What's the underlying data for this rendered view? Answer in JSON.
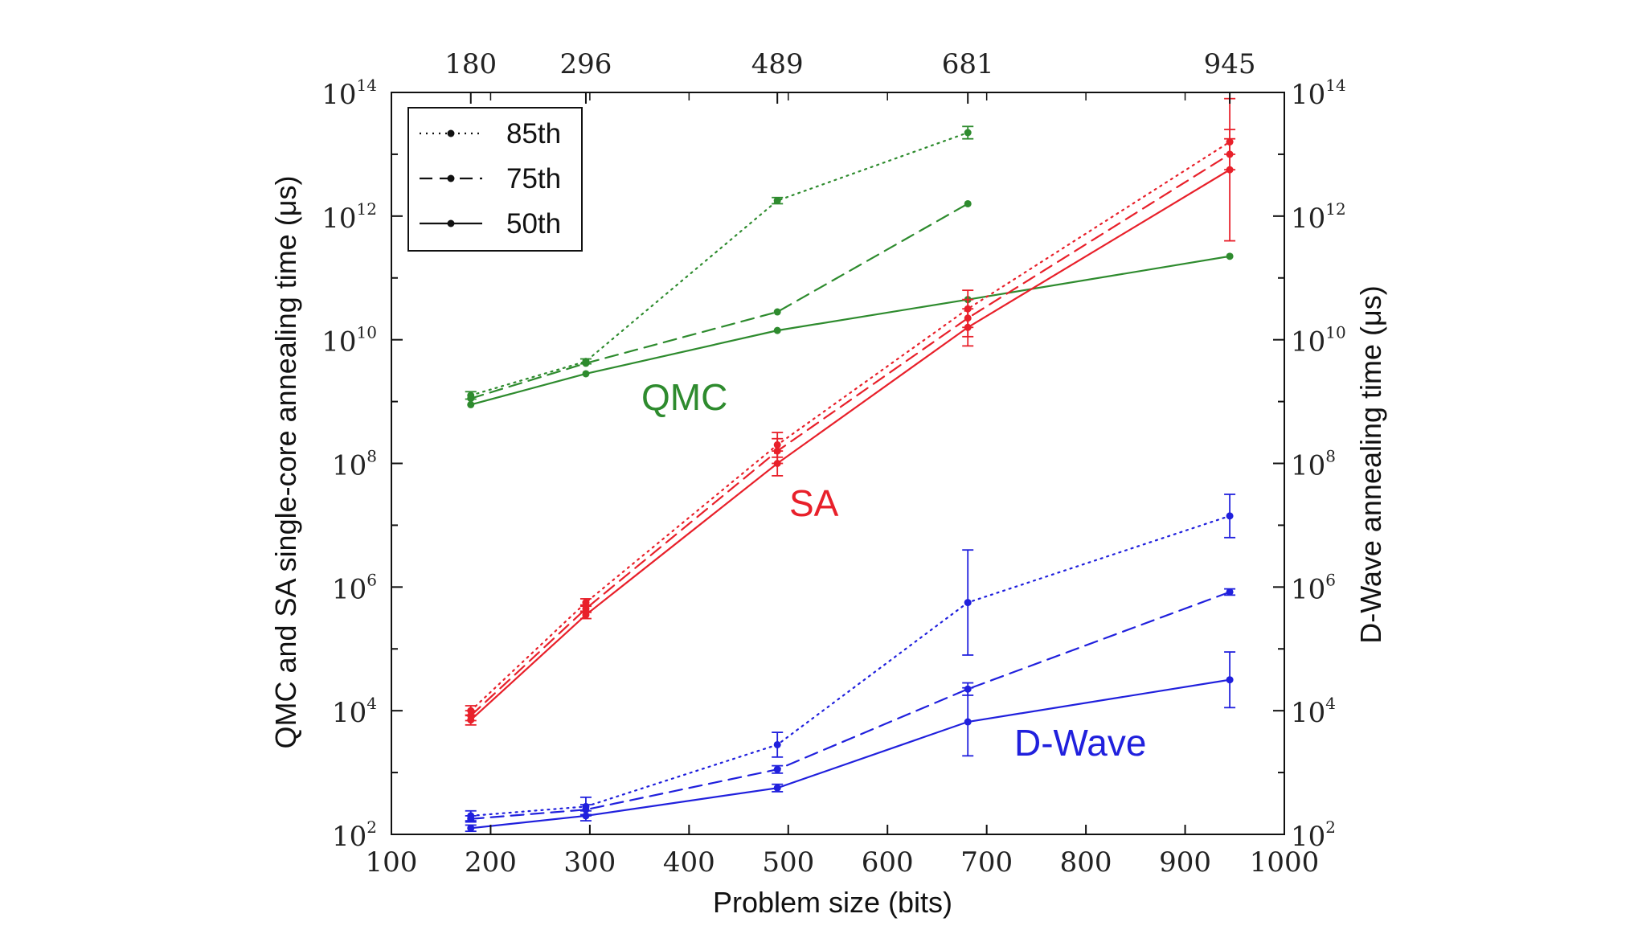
{
  "chart_data": {
    "type": "line",
    "xlabel": "Problem size (bits)",
    "ylabel_left": "QMC and SA single-core annealing time (μs)",
    "ylabel_right": "D-Wave annealing time (μs)",
    "xlim": [
      100,
      1000
    ],
    "ylim_exp": [
      2,
      14
    ],
    "y_scale": "log",
    "x_ticks": [
      100,
      200,
      300,
      400,
      500,
      600,
      700,
      800,
      900,
      1000
    ],
    "x_tick_labels": [
      "100",
      "200",
      "300",
      "400",
      "500",
      "600",
      "700",
      "800",
      "900",
      "1000"
    ],
    "top_ticks": [
      180,
      296,
      489,
      681,
      945
    ],
    "top_tick_labels": [
      "180",
      "296",
      "489",
      "681",
      "945"
    ],
    "y_tick_exponents": [
      2,
      4,
      6,
      8,
      10,
      12,
      14
    ],
    "y_tick_base": "10",
    "legend": {
      "position": "top-left",
      "entries": [
        {
          "label": "85th",
          "style": "dotted"
        },
        {
          "label": "75th",
          "style": "dashed"
        },
        {
          "label": "50th",
          "style": "solid"
        }
      ]
    },
    "annotations": [
      {
        "text": "QMC",
        "group": "QMC"
      },
      {
        "text": "SA",
        "group": "SA"
      },
      {
        "text": "D-Wave",
        "group": "D-Wave"
      }
    ],
    "colors": {
      "QMC": "#2e8b2e",
      "SA": "#e8202a",
      "D-Wave": "#2020dd"
    },
    "series": [
      {
        "group": "QMC",
        "percentile": "85th",
        "style": "dotted",
        "x": [
          180,
          296,
          489,
          681
        ],
        "log10_y": [
          9.1,
          9.65,
          12.25,
          13.35
        ],
        "err": [
          0.06,
          0.04,
          0.05,
          0.1
        ]
      },
      {
        "group": "QMC",
        "percentile": "75th",
        "style": "dashed",
        "x": [
          180,
          296,
          489,
          681
        ],
        "log10_y": [
          9.05,
          9.62,
          10.45,
          12.2
        ],
        "err": [
          0,
          0,
          0,
          0
        ]
      },
      {
        "group": "QMC",
        "percentile": "50th",
        "style": "solid",
        "x": [
          180,
          296,
          489,
          681,
          945
        ],
        "log10_y": [
          8.95,
          9.45,
          10.15,
          10.65,
          11.35
        ],
        "err": [
          0,
          0,
          0,
          0,
          0
        ]
      },
      {
        "group": "SA",
        "percentile": "85th",
        "style": "dotted",
        "x": [
          180,
          296,
          489,
          681,
          945
        ],
        "log10_y": [
          4.0,
          5.75,
          8.3,
          10.5,
          13.2
        ],
        "err": [
          0.08,
          0.06,
          0.2,
          0.3,
          0.2
        ]
      },
      {
        "group": "SA",
        "percentile": "75th",
        "style": "dashed",
        "x": [
          180,
          296,
          489,
          681,
          945
        ],
        "log10_y": [
          3.92,
          5.65,
          8.2,
          10.35,
          13.0
        ],
        "err": [
          0.08,
          0.06,
          0.2,
          0.3,
          0.25
        ]
      },
      {
        "group": "SA",
        "percentile": "50th",
        "style": "solid",
        "x": [
          180,
          296,
          489,
          681,
          945
        ],
        "log10_y": [
          3.85,
          5.55,
          8.0,
          10.2,
          12.75
        ],
        "err": [
          0.08,
          0.06,
          0.2,
          0.3,
          1.15
        ]
      },
      {
        "group": "D-Wave",
        "percentile": "85th",
        "style": "dotted",
        "x": [
          180,
          296,
          489,
          681,
          945
        ],
        "log10_y": [
          2.3,
          2.45,
          3.45,
          5.75,
          7.15
        ],
        "err": [
          0.08,
          0.15,
          0.2,
          0.85,
          0.35
        ]
      },
      {
        "group": "D-Wave",
        "percentile": "75th",
        "style": "dashed",
        "x": [
          180,
          296,
          489,
          681,
          945
        ],
        "log10_y": [
          2.25,
          2.4,
          3.05,
          4.35,
          5.92
        ],
        "err": [
          0.05,
          0.08,
          0.06,
          0.1,
          0.05
        ]
      },
      {
        "group": "D-Wave",
        "percentile": "50th",
        "style": "solid",
        "x": [
          180,
          296,
          489,
          681,
          945
        ],
        "log10_y": [
          2.1,
          2.3,
          2.75,
          3.82,
          4.5
        ],
        "err": [
          0.05,
          0.08,
          0.06,
          0.55,
          0.45
        ]
      }
    ]
  }
}
